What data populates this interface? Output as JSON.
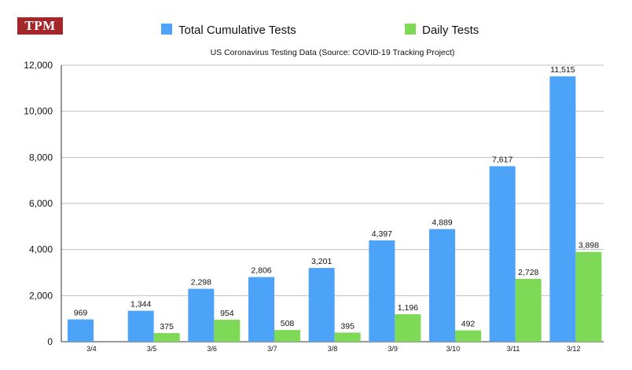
{
  "logo": "TPM",
  "colors": {
    "total": "#4da3f7",
    "daily": "#7ed957",
    "logo_bg": "#a3262b"
  },
  "chart_data": {
    "type": "bar",
    "title": "US Coronavirus Testing Data (Source: COVID-19 Tracking Project)",
    "xlabel": "",
    "ylabel": "",
    "categories": [
      "3/4",
      "3/5",
      "3/6",
      "3/7",
      "3/8",
      "3/9",
      "3/10",
      "3/11",
      "3/12"
    ],
    "series": [
      {
        "name": "Total Cumulative Tests",
        "color": "#4da3f7",
        "values": [
          969,
          1344,
          2298,
          2806,
          3201,
          4397,
          4889,
          7617,
          11515
        ],
        "labels": [
          "969",
          "1,344",
          "2,298",
          "2,806",
          "3,201",
          "4,397",
          "4,889",
          "7,617",
          "11,515"
        ]
      },
      {
        "name": "Daily Tests",
        "color": "#7ed957",
        "values": [
          null,
          375,
          954,
          508,
          395,
          1196,
          492,
          2728,
          3898
        ],
        "labels": [
          "",
          "375",
          "954",
          "508",
          "395",
          "1,196",
          "492",
          "2,728",
          "3,898"
        ]
      }
    ],
    "ylim": [
      0,
      12000
    ],
    "yticks": [
      0,
      2000,
      4000,
      6000,
      8000,
      10000,
      12000
    ],
    "ytick_labels": [
      "0",
      "2,000",
      "4,000",
      "6,000",
      "8,000",
      "10,000",
      "12,000"
    ],
    "grid": true,
    "legend": "top"
  }
}
